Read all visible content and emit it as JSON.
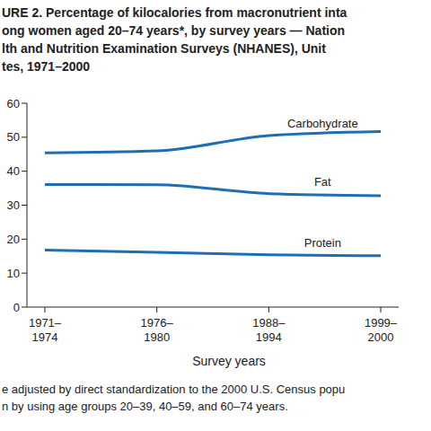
{
  "chart_data": {
    "type": "line",
    "title": "URE 2. Percentage of kilocalories from macronutrient inta\nong women aged 20–74 years*, by survey years — Nation\nlth and Nutrition Examination Surveys (NHANES), Unit\ntes, 1971–2000",
    "x_label": "Survey years",
    "categories": [
      "1971–1974",
      "1976–1980",
      "1988–1994",
      "1999–2000"
    ],
    "series": [
      {
        "name": "Carbohydrate",
        "color": "#1f6db3",
        "values": [
          45.4,
          46.0,
          50.5,
          51.7
        ]
      },
      {
        "name": "Fat",
        "color": "#1f6db3",
        "values": [
          36.1,
          36.0,
          33.4,
          32.8
        ]
      },
      {
        "name": "Protein",
        "color": "#1f6db3",
        "values": [
          16.8,
          16.1,
          15.4,
          15.1
        ]
      }
    ],
    "ylim": [
      0,
      60
    ],
    "yticks": [
      0,
      10,
      20,
      30,
      40,
      50,
      60
    ],
    "grid": false,
    "annotations": [
      "e adjusted by direct standardization to the 2000 U.S. Census popu",
      "n by using age groups 20–39, 40–59, and 60–74 years."
    ]
  }
}
